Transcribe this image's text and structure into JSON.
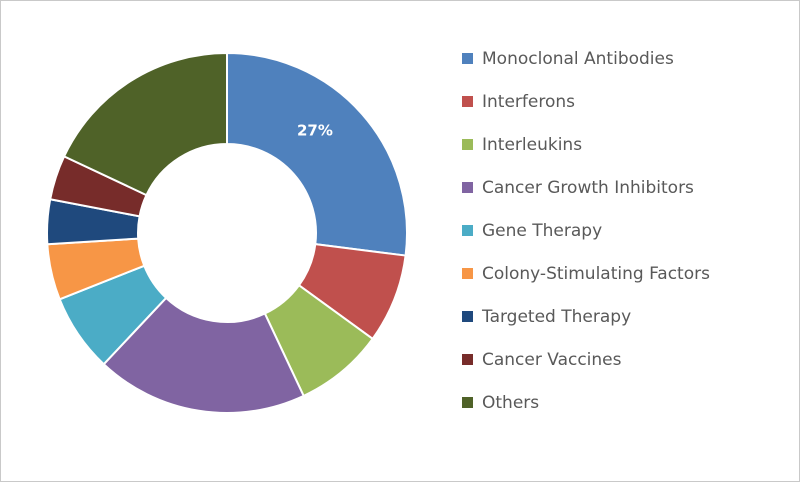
{
  "chart_data": {
    "type": "pie",
    "title": "",
    "categories": [
      "Monoclonal Antibodies",
      "Interferons",
      "Interleukins",
      "Cancer Growth Inhibitors",
      "Gene Therapy",
      "Colony-Stimulating Factors",
      "Targeted Therapy",
      "Cancer Vaccines",
      "Others"
    ],
    "values": [
      27,
      8,
      8,
      19,
      7,
      5,
      4,
      4,
      18
    ],
    "colors": [
      "#4f81bd",
      "#c0504d",
      "#9bbb59",
      "#8064a2",
      "#4bacc6",
      "#f79646",
      "#1f497d",
      "#772c2a",
      "#4f6228"
    ],
    "data_labels": [
      "27%",
      "",
      "",
      "",
      "",
      "",
      "",
      "",
      ""
    ],
    "donut": true,
    "legend_position": "right"
  }
}
